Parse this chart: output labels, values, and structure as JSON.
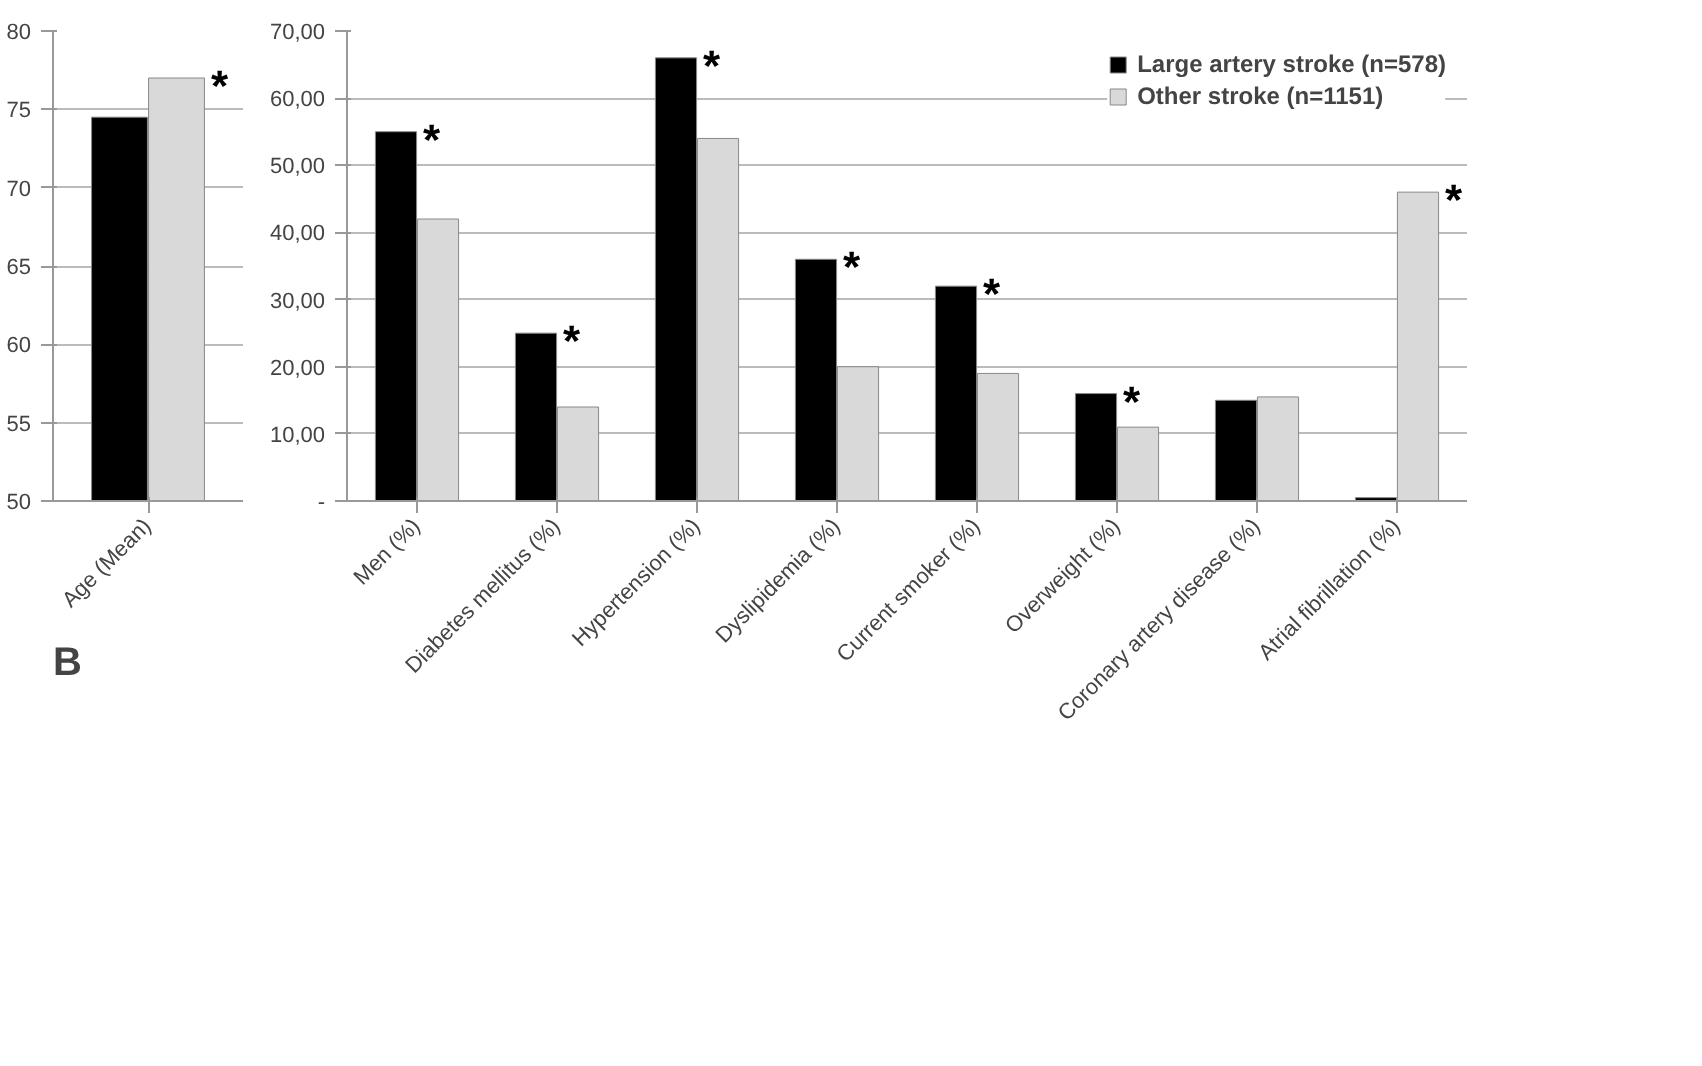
{
  "chart_data": [
    {
      "type": "bar",
      "categories": [
        "Age (Mean)"
      ],
      "series": [
        {
          "color": "#000000",
          "values": [
            74.5
          ]
        },
        {
          "color": "#d9d9d9",
          "values": [
            77
          ]
        }
      ],
      "ylim": [
        50,
        80
      ],
      "yticks": [
        50,
        55,
        60,
        65,
        70,
        75,
        80
      ],
      "grid": "y",
      "annotations": [
        {
          "text": "*",
          "x": "Age (Mean)",
          "y": 77
        },
        "B"
      ]
    },
    {
      "type": "bar",
      "categories": [
        "Men (%)",
        "Diabetes mellitus (%)",
        "Hypertension (%)",
        "Dyslipidemia (%)",
        "Current smoker (%)",
        "Overweight (%)",
        "Coronary artery disease (%)",
        "Atrial fibrillation (%)"
      ],
      "series": [
        {
          "name": "Large artery stroke (n=578)",
          "color": "#000000",
          "values": [
            55,
            25,
            66,
            36,
            32,
            16,
            15,
            0.5
          ]
        },
        {
          "name": "Other stroke (n=1151)",
          "color": "#d9d9d9",
          "values": [
            42,
            14,
            54,
            20,
            19,
            11,
            15.5,
            46
          ]
        }
      ],
      "ylim": [
        0,
        70
      ],
      "yticks": [
        {
          "value": 0,
          "label": "-"
        },
        {
          "value": 10,
          "label": "10,00"
        },
        {
          "value": 20,
          "label": "20,00"
        },
        {
          "value": 30,
          "label": "30,00"
        },
        {
          "value": 40,
          "label": "40,00"
        },
        {
          "value": 50,
          "label": "50,00"
        },
        {
          "value": 60,
          "label": "60,00"
        },
        {
          "value": 70,
          "label": "70,00"
        }
      ],
      "grid": "y",
      "legend": "top right",
      "annotations": [
        {
          "text": "*",
          "x": "Men (%)",
          "y": 55
        },
        {
          "text": "*",
          "x": "Diabetes mellitus (%)",
          "y": 25
        },
        {
          "text": "*",
          "x": "Hypertension (%)",
          "y": 66
        },
        {
          "text": "*",
          "x": "Dyslipidemia (%)",
          "y": 36
        },
        {
          "text": "*",
          "x": "Current smoker (%)",
          "y": 32
        },
        {
          "text": "*",
          "x": "Overweight (%)",
          "y": 16
        },
        {
          "text": "*",
          "x": "Atrial fibrillation (%)",
          "y": 46
        }
      ]
    }
  ]
}
